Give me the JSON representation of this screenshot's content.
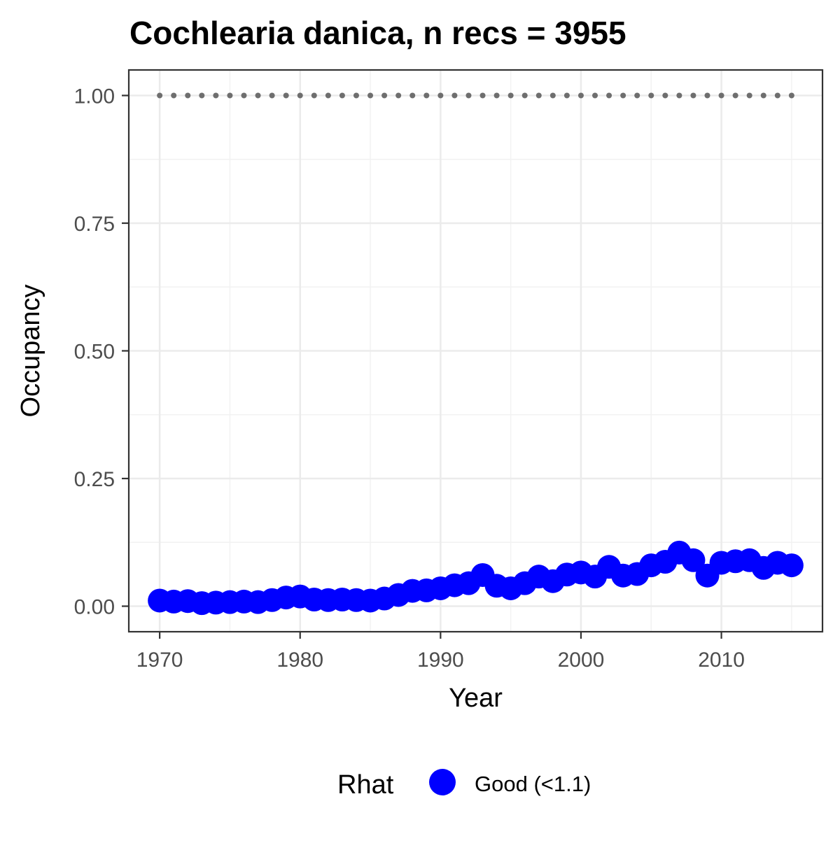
{
  "chart_data": {
    "type": "scatter",
    "title": "Cochlearia danica, n recs = 3955",
    "xlabel": "Year",
    "ylabel": "Occupancy",
    "xlim": [
      1967.8,
      2017.2
    ],
    "ylim": [
      -0.05,
      1.05
    ],
    "x_ticks": [
      1970,
      1980,
      1990,
      2000,
      2010
    ],
    "x_tick_labels": [
      "1970",
      "1980",
      "1990",
      "2000",
      "2010"
    ],
    "y_ticks": [
      0,
      0.25,
      0.5,
      0.75,
      1.0
    ],
    "y_tick_labels": [
      "0.00",
      "0.25",
      "0.50",
      "0.75",
      "1.00"
    ],
    "grid": true,
    "legend": {
      "title": "Rhat",
      "position": "bottom",
      "entries": [
        {
          "label": "Good (<1.1)",
          "color": "#0000ff"
        }
      ]
    },
    "reference_line": {
      "y": 1.0,
      "x_from": 1970,
      "x_to": 2015,
      "style": "dotted",
      "color": "#6e6e6e"
    },
    "series": [
      {
        "name": "Good (<1.1)",
        "color": "#0000ff",
        "x": [
          1970,
          1971,
          1972,
          1973,
          1974,
          1975,
          1976,
          1977,
          1978,
          1979,
          1980,
          1981,
          1982,
          1983,
          1984,
          1985,
          1986,
          1987,
          1988,
          1989,
          1990,
          1991,
          1992,
          1993,
          1994,
          1995,
          1996,
          1997,
          1998,
          1999,
          2000,
          2001,
          2002,
          2003,
          2004,
          2005,
          2006,
          2007,
          2008,
          2009,
          2010,
          2011,
          2012,
          2013,
          2014,
          2015
        ],
        "y": [
          0.011,
          0.009,
          0.01,
          0.006,
          0.007,
          0.008,
          0.009,
          0.008,
          0.012,
          0.017,
          0.019,
          0.013,
          0.012,
          0.013,
          0.012,
          0.011,
          0.015,
          0.022,
          0.03,
          0.031,
          0.035,
          0.041,
          0.045,
          0.061,
          0.04,
          0.035,
          0.045,
          0.058,
          0.049,
          0.062,
          0.066,
          0.058,
          0.077,
          0.06,
          0.063,
          0.08,
          0.087,
          0.105,
          0.09,
          0.06,
          0.085,
          0.088,
          0.09,
          0.075,
          0.085,
          0.08
        ]
      }
    ]
  },
  "colors": {
    "panel_border": "#333333",
    "grid_major": "#ebebeb",
    "grid_minor": "#f2f2f2",
    "point": "#0000ff",
    "reference": "#6e6e6e",
    "tick_text": "#4d4d4d"
  }
}
